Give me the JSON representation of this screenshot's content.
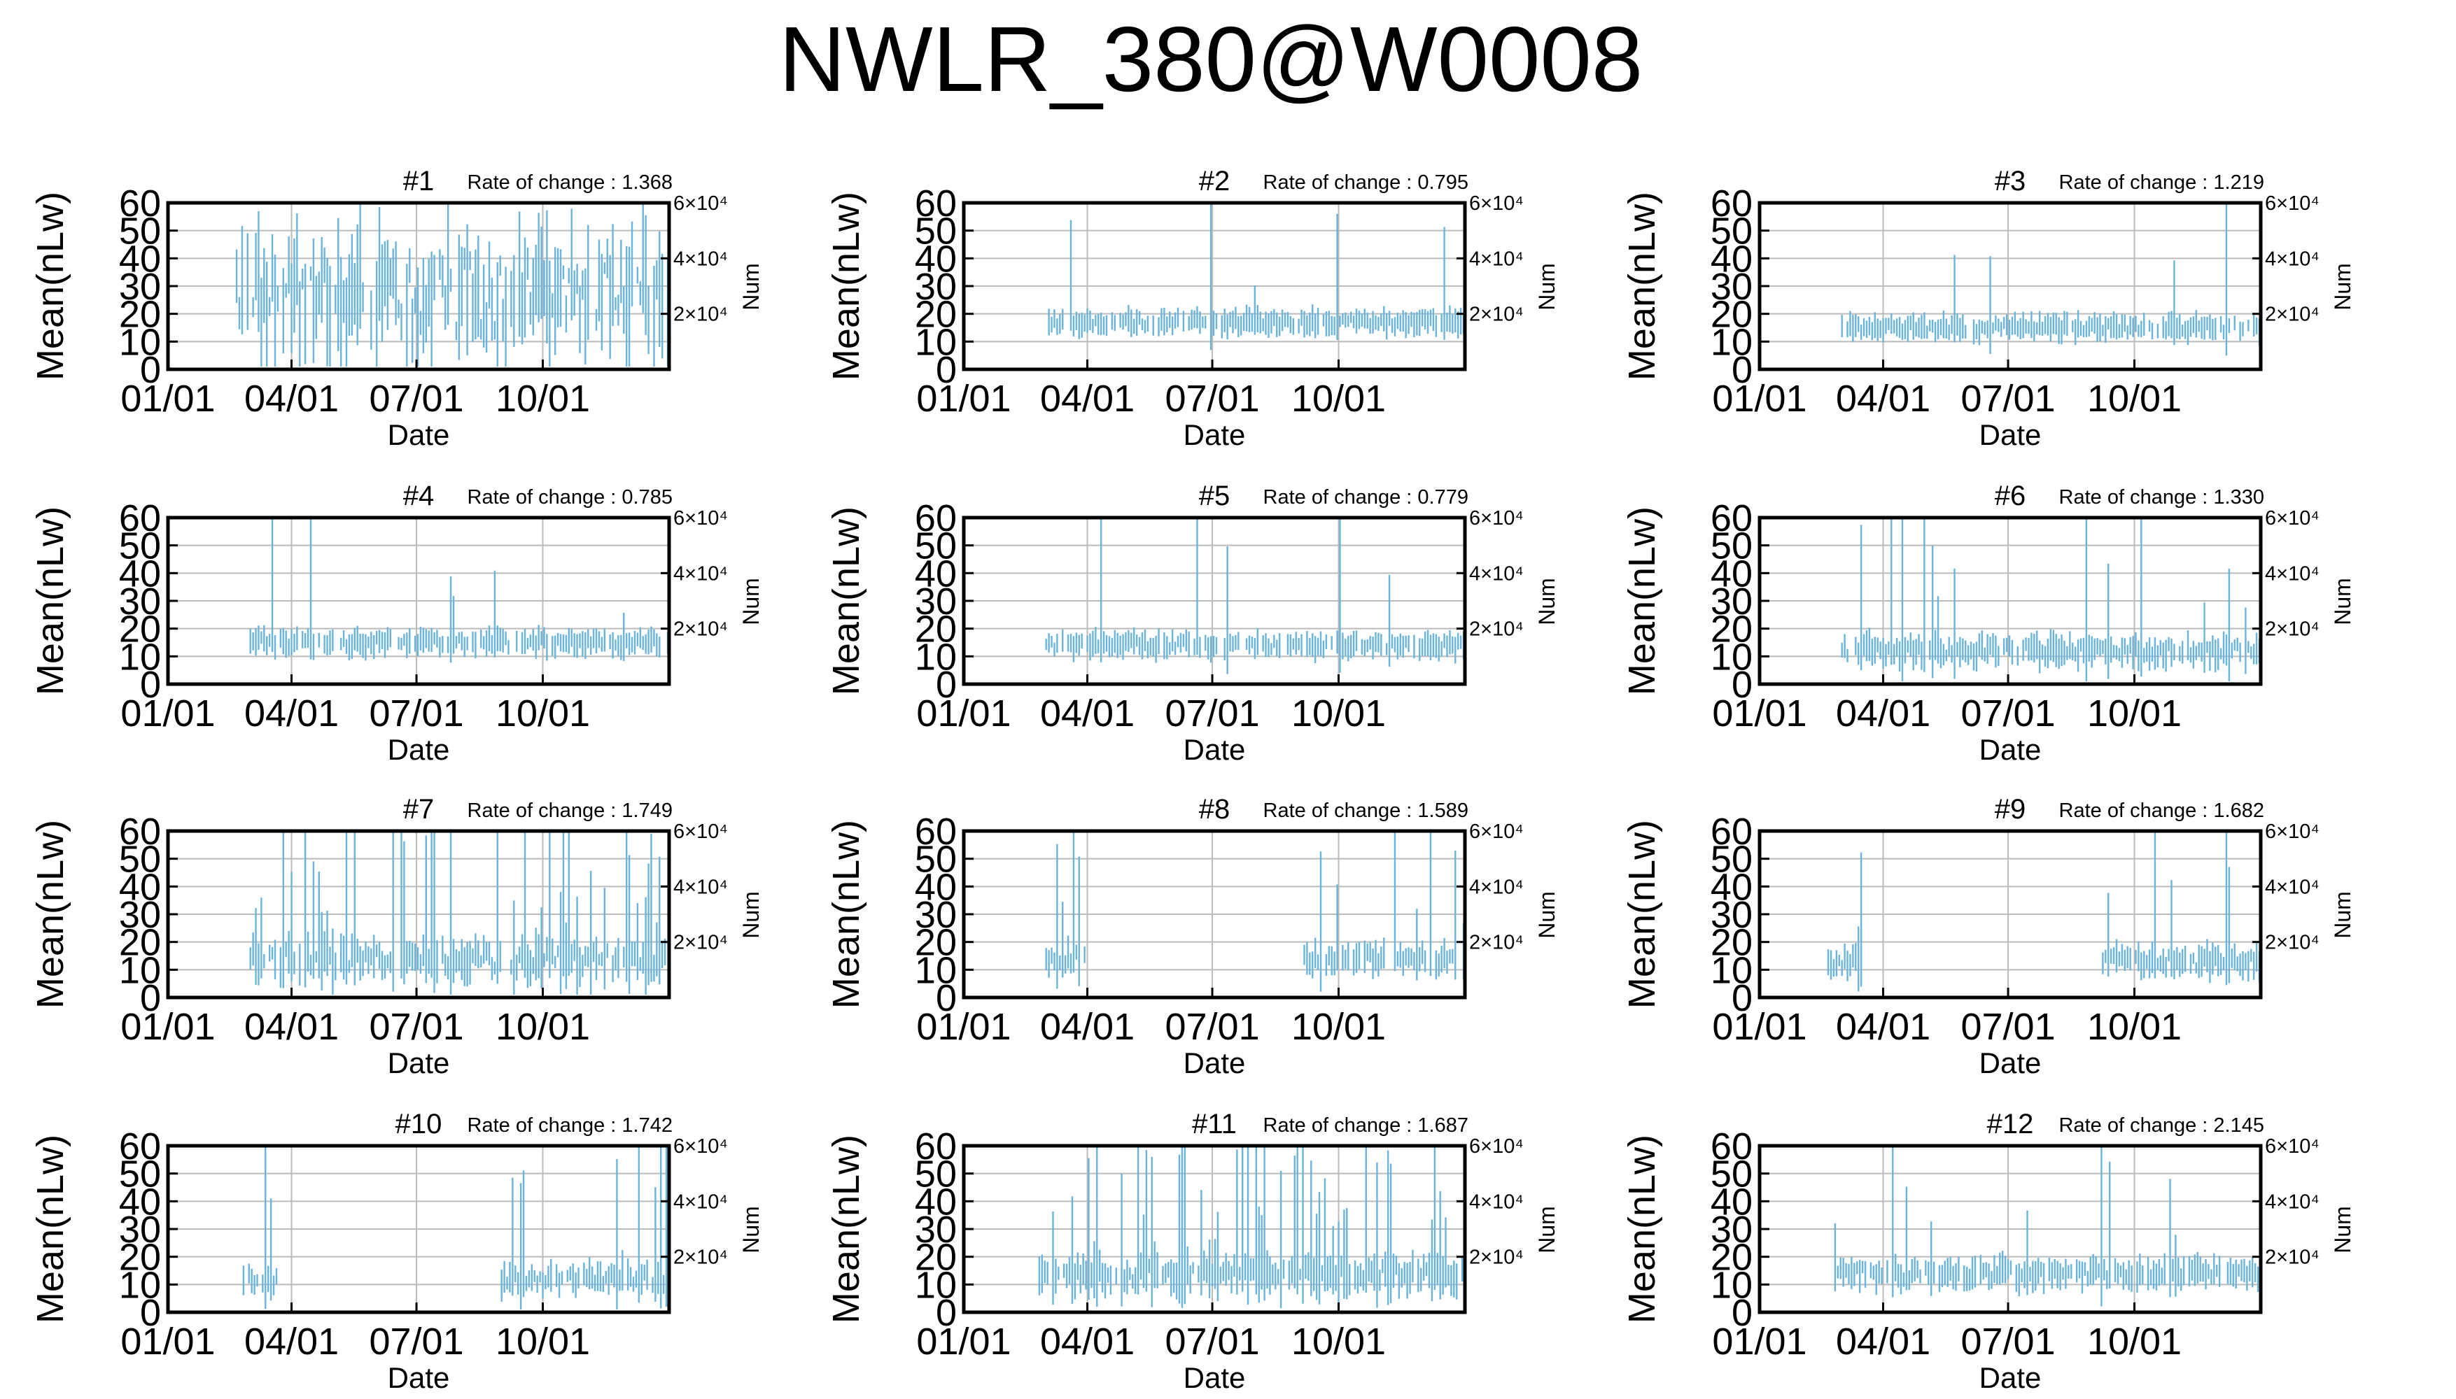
{
  "title": "NWLR_380@W0008",
  "panel_common": {
    "ylabel": "Mean(nLw)",
    "y2label": "Num",
    "xlabel": "Date",
    "ylim": [
      0,
      60
    ],
    "yticks": [
      "0",
      "10",
      "20",
      "30",
      "40",
      "50",
      "60"
    ],
    "xticks": [
      "01/01",
      "04/01",
      "07/01",
      "10/01"
    ],
    "xtick_days": [
      0,
      90,
      181,
      273
    ],
    "xlim_days": [
      0,
      365
    ],
    "y2ticks": [
      "2×10⁴",
      "4×10⁴",
      "6×10⁴"
    ],
    "y2tick_values": [
      20000,
      40000,
      60000
    ],
    "rate_prefix": "Rate of change : ",
    "series_color": "#6ab4dc",
    "grid": true
  },
  "chart_data": [
    {
      "type": "errorbar",
      "title": "#1",
      "rate": "1.368",
      "data_start_day": 50,
      "data_end_day": 365,
      "center": 27,
      "spread": 22,
      "spiky": 0
    },
    {
      "type": "errorbar",
      "title": "#2",
      "rate": "0.795",
      "data_start_day": 60,
      "data_end_day": 365,
      "center": 17,
      "spread": 3,
      "spiky": 0.04
    },
    {
      "type": "errorbar",
      "title": "#3",
      "rate": "1.219",
      "data_start_day": 60,
      "data_end_day": 365,
      "center": 15,
      "spread": 3,
      "spiky": 0.04
    },
    {
      "type": "errorbar",
      "title": "#4",
      "rate": "0.785",
      "data_start_day": 60,
      "data_end_day": 365,
      "center": 15,
      "spread": 3,
      "spiky": 0.03
    },
    {
      "type": "errorbar",
      "title": "#5",
      "rate": "0.779",
      "data_start_day": 60,
      "data_end_day": 365,
      "center": 14,
      "spread": 3,
      "spiky": 0.03
    },
    {
      "type": "errorbar",
      "title": "#6",
      "rate": "1.330",
      "data_start_day": 60,
      "data_end_day": 365,
      "center": 12,
      "spread": 4,
      "spiky": 0.08
    },
    {
      "type": "errorbar",
      "title": "#7",
      "rate": "1.749",
      "data_start_day": 60,
      "data_end_day": 365,
      "center": 14,
      "spread": 6,
      "spiky": 0.25
    },
    {
      "type": "errorbar",
      "title": "#8",
      "rate": "1.589",
      "data_start_day": 60,
      "data_end_day": 365,
      "center": 14,
      "spread": 4,
      "spiky": 0.12,
      "gap": [
        88,
        248
      ]
    },
    {
      "type": "errorbar",
      "title": "#9",
      "rate": "1.682",
      "data_start_day": 50,
      "data_end_day": 365,
      "center": 13,
      "spread": 4,
      "spiky": 0.12,
      "gap": [
        75,
        250
      ]
    },
    {
      "type": "errorbar",
      "title": "#10",
      "rate": "1.742",
      "data_start_day": 55,
      "data_end_day": 365,
      "center": 12,
      "spread": 4,
      "spiky": 0.12,
      "gap": [
        80,
        242
      ]
    },
    {
      "type": "errorbar",
      "title": "#11",
      "rate": "1.687",
      "data_start_day": 55,
      "data_end_day": 365,
      "center": 14,
      "spread": 5,
      "spiky": 0.35
    },
    {
      "type": "errorbar",
      "title": "#12",
      "rate": "2.145",
      "data_start_day": 55,
      "data_end_day": 365,
      "center": 14,
      "spread": 4,
      "spiky": 0.08
    }
  ]
}
